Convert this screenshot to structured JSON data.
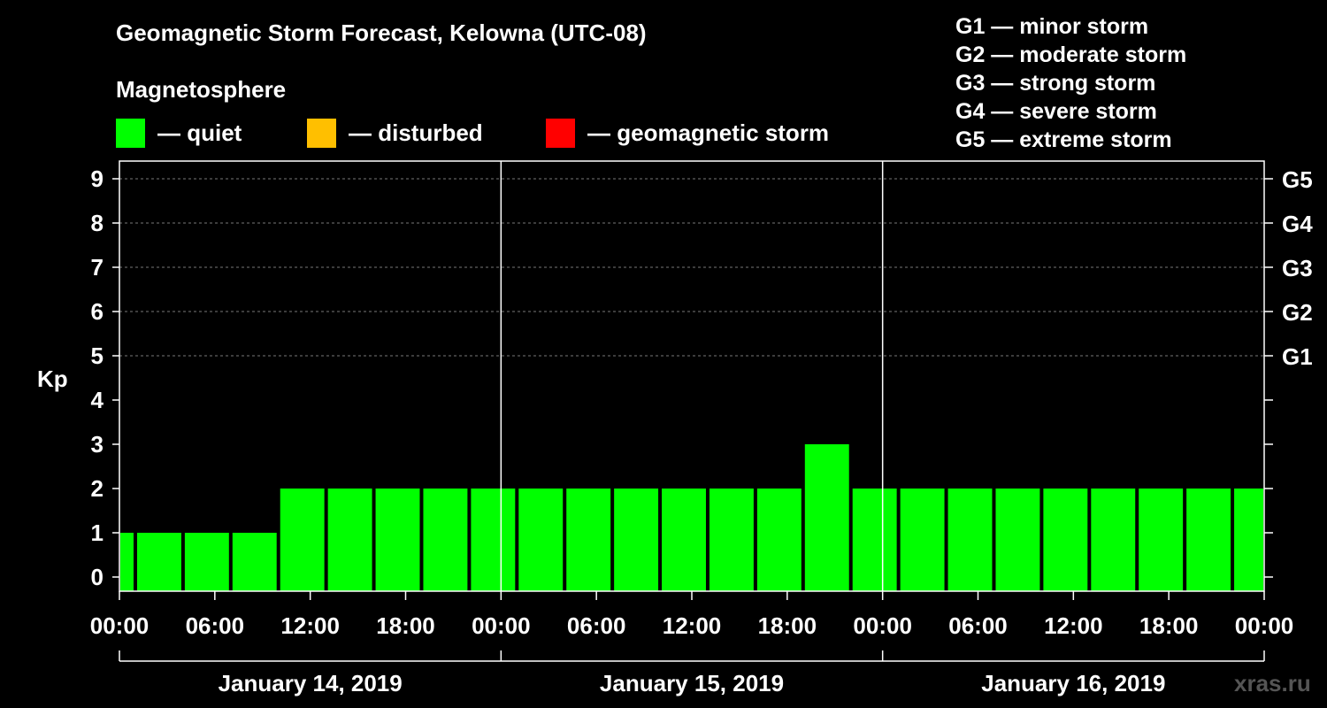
{
  "header": {
    "title": "Geomagnetic Storm Forecast, Kelowna (UTC-08)",
    "subtitle": "Magnetosphere"
  },
  "legend": [
    {
      "label": "— quiet",
      "color": "#00ff00"
    },
    {
      "label": "— disturbed",
      "color": "#ffbf00"
    },
    {
      "label": "— geomagnetic storm",
      "color": "#ff0000"
    }
  ],
  "storm_levels": [
    "G1 — minor storm",
    "G2 — moderate storm",
    "G3 — strong storm",
    "G4 — severe storm",
    "G5 — extreme storm"
  ],
  "watermark": "xras.ru",
  "chart_data": {
    "type": "bar",
    "title": "Geomagnetic Storm Forecast, Kelowna (UTC-08)",
    "xlabel": "",
    "ylabel": "Kp",
    "ylim": [
      0,
      9
    ],
    "yticks": [
      "0",
      "1",
      "2",
      "3",
      "4",
      "5",
      "6",
      "7",
      "8",
      "9"
    ],
    "right_axis_labels": [
      {
        "kp": 5,
        "label": "G1"
      },
      {
        "kp": 6,
        "label": "G2"
      },
      {
        "kp": 7,
        "label": "G3"
      },
      {
        "kp": 8,
        "label": "G4"
      },
      {
        "kp": 9,
        "label": "G5"
      }
    ],
    "x_tick_labels": [
      "00:00",
      "06:00",
      "12:00",
      "18:00",
      "00:00",
      "06:00",
      "12:00",
      "18:00",
      "00:00",
      "06:00",
      "12:00",
      "18:00",
      "00:00"
    ],
    "days": [
      "January 14, 2019",
      "January 15, 2019",
      "January 16, 2019"
    ],
    "bars": [
      {
        "start_hour": 0,
        "end_hour": 1,
        "kp": 1,
        "color": "#00ff00"
      },
      {
        "start_hour": 1,
        "end_hour": 4,
        "kp": 1,
        "color": "#00ff00"
      },
      {
        "start_hour": 4,
        "end_hour": 7,
        "kp": 1,
        "color": "#00ff00"
      },
      {
        "start_hour": 7,
        "end_hour": 10,
        "kp": 1,
        "color": "#00ff00"
      },
      {
        "start_hour": 10,
        "end_hour": 13,
        "kp": 2,
        "color": "#00ff00"
      },
      {
        "start_hour": 13,
        "end_hour": 16,
        "kp": 2,
        "color": "#00ff00"
      },
      {
        "start_hour": 16,
        "end_hour": 19,
        "kp": 2,
        "color": "#00ff00"
      },
      {
        "start_hour": 19,
        "end_hour": 22,
        "kp": 2,
        "color": "#00ff00"
      },
      {
        "start_hour": 22,
        "end_hour": 25,
        "kp": 2,
        "color": "#00ff00"
      },
      {
        "start_hour": 25,
        "end_hour": 28,
        "kp": 2,
        "color": "#00ff00"
      },
      {
        "start_hour": 28,
        "end_hour": 31,
        "kp": 2,
        "color": "#00ff00"
      },
      {
        "start_hour": 31,
        "end_hour": 34,
        "kp": 2,
        "color": "#00ff00"
      },
      {
        "start_hour": 34,
        "end_hour": 37,
        "kp": 2,
        "color": "#00ff00"
      },
      {
        "start_hour": 37,
        "end_hour": 40,
        "kp": 2,
        "color": "#00ff00"
      },
      {
        "start_hour": 40,
        "end_hour": 43,
        "kp": 2,
        "color": "#00ff00"
      },
      {
        "start_hour": 43,
        "end_hour": 46,
        "kp": 3,
        "color": "#00ff00"
      },
      {
        "start_hour": 46,
        "end_hour": 49,
        "kp": 2,
        "color": "#00ff00"
      },
      {
        "start_hour": 49,
        "end_hour": 52,
        "kp": 2,
        "color": "#00ff00"
      },
      {
        "start_hour": 52,
        "end_hour": 55,
        "kp": 2,
        "color": "#00ff00"
      },
      {
        "start_hour": 55,
        "end_hour": 58,
        "kp": 2,
        "color": "#00ff00"
      },
      {
        "start_hour": 58,
        "end_hour": 61,
        "kp": 2,
        "color": "#00ff00"
      },
      {
        "start_hour": 61,
        "end_hour": 64,
        "kp": 2,
        "color": "#00ff00"
      },
      {
        "start_hour": 64,
        "end_hour": 67,
        "kp": 2,
        "color": "#00ff00"
      },
      {
        "start_hour": 67,
        "end_hour": 70,
        "kp": 2,
        "color": "#00ff00"
      },
      {
        "start_hour": 70,
        "end_hour": 72,
        "kp": 2,
        "color": "#00ff00"
      }
    ],
    "x_range_hours": [
      0,
      72
    ]
  }
}
